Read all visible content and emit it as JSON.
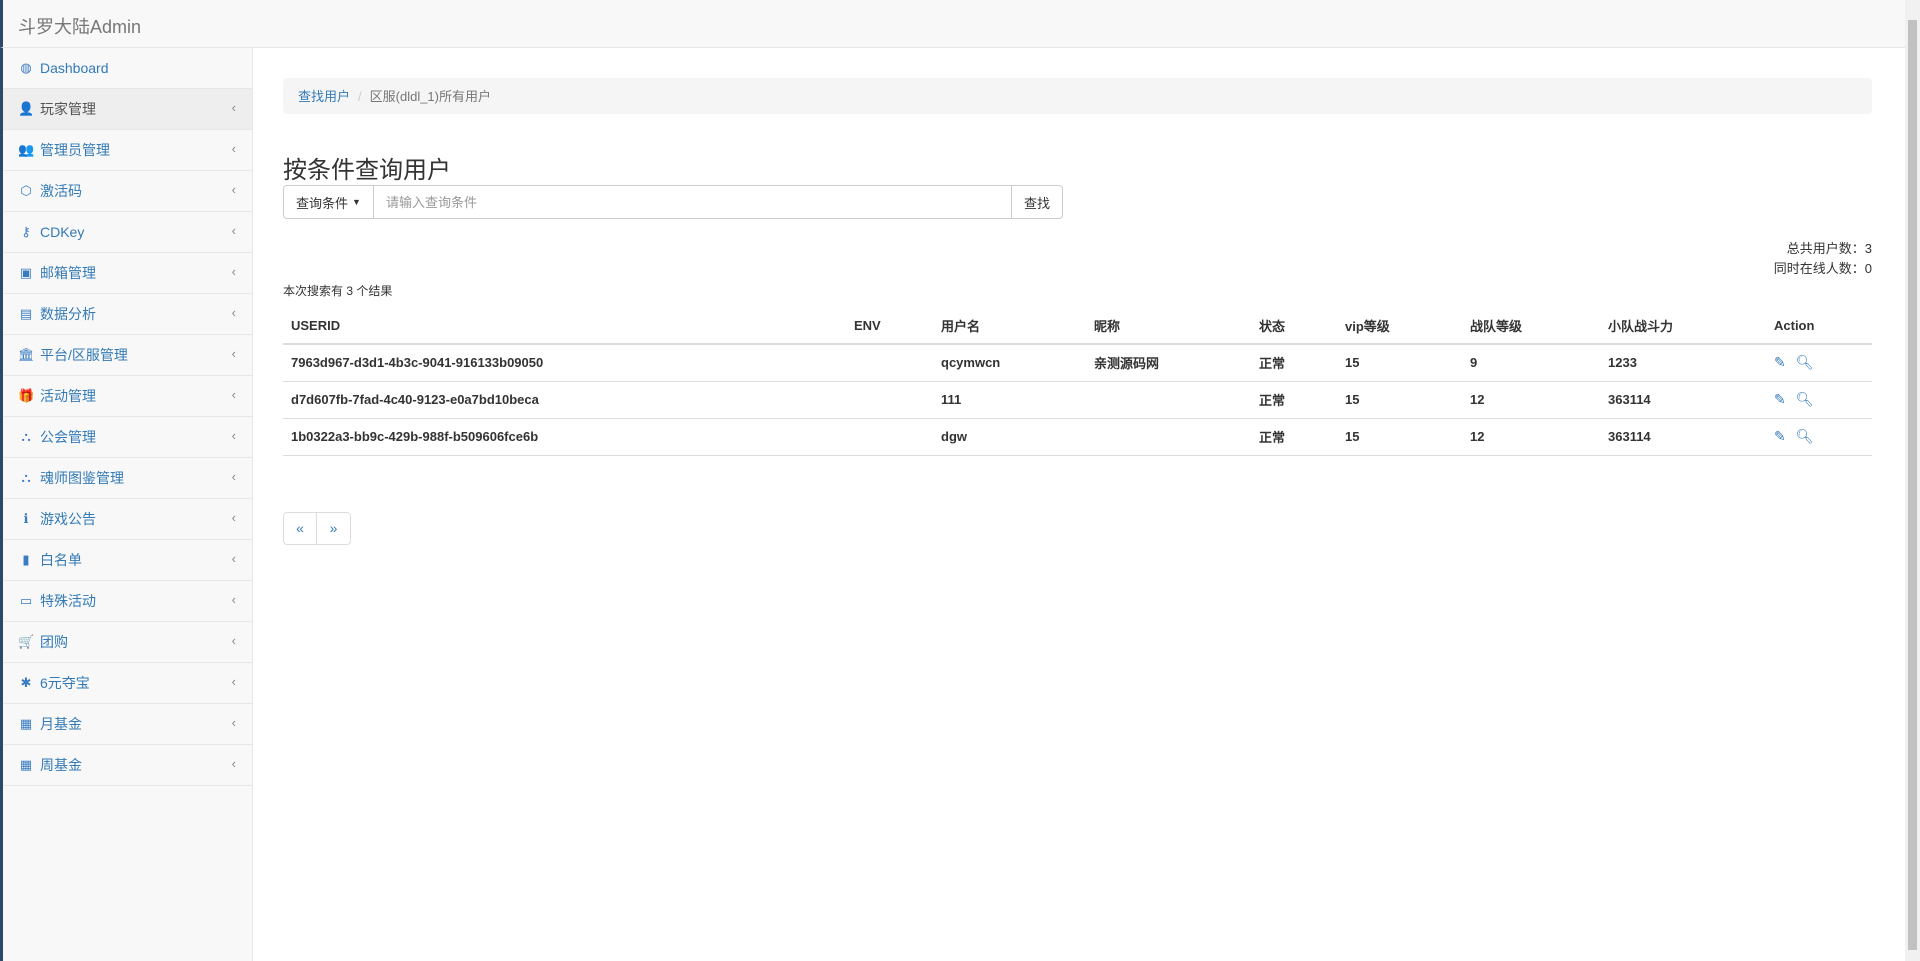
{
  "app_title": "斗罗大陆Admin",
  "sidebar": {
    "items": [
      {
        "label": "Dashboard",
        "icon": "dashboard-icon",
        "glyph": "◍"
      },
      {
        "label": "玩家管理",
        "icon": "user-icon",
        "glyph": "👤",
        "active": true
      },
      {
        "label": "管理员管理",
        "icon": "users-icon",
        "glyph": "👥"
      },
      {
        "label": "激活码",
        "icon": "codepen-icon",
        "glyph": "⬡"
      },
      {
        "label": "CDKey",
        "icon": "key-icon",
        "glyph": "⚷"
      },
      {
        "label": "邮箱管理",
        "icon": "inbox-icon",
        "glyph": "▣"
      },
      {
        "label": "数据分析",
        "icon": "bar-chart-icon",
        "glyph": "▤"
      },
      {
        "label": "平台/区服管理",
        "icon": "bank-icon",
        "glyph": "🏛"
      },
      {
        "label": "活动管理",
        "icon": "gift-icon",
        "glyph": "🎁"
      },
      {
        "label": "公会管理",
        "icon": "sitemap-icon",
        "glyph": "⛬"
      },
      {
        "label": "魂师图鉴管理",
        "icon": "sitemap-icon",
        "glyph": "⛬"
      },
      {
        "label": "游戏公告",
        "icon": "info-icon",
        "glyph": "ℹ"
      },
      {
        "label": "白名单",
        "icon": "file-icon",
        "glyph": "▮"
      },
      {
        "label": "特殊活动",
        "icon": "money-icon",
        "glyph": "▭"
      },
      {
        "label": "团购",
        "icon": "shopping-cart-icon",
        "glyph": "🛒"
      },
      {
        "label": "6元夺宝",
        "icon": "asterisk-icon",
        "glyph": "✱"
      },
      {
        "label": "月基金",
        "icon": "calendar-icon",
        "glyph": "▦"
      },
      {
        "label": "周基金",
        "icon": "calendar-icon",
        "glyph": "▦"
      }
    ]
  },
  "breadcrumb": {
    "link": "查找用户",
    "current": "区服(dldl_1)所有用户"
  },
  "page_title": "按条件查询用户",
  "search": {
    "dropdown_label": "查询条件",
    "placeholder": "请输入查询条件",
    "button": "查找"
  },
  "stats": {
    "total_users": "总共用户数：3",
    "online_users": "同时在线人数：0"
  },
  "result_text": "本次搜索有 3 个结果",
  "table": {
    "headers": [
      "USERID",
      "ENV",
      "用户名",
      "昵称",
      "状态",
      "vip等级",
      "战队等级",
      "小队战斗力",
      "Action"
    ],
    "rows": [
      [
        "7963d967-d3d1-4b3c-9041-916133b09050",
        "",
        "qcymwcn",
        "亲测源码网",
        "正常",
        "15",
        "9",
        "1233"
      ],
      [
        "d7d607fb-7fad-4c40-9123-e0a7bd10beca",
        "",
        "111",
        "",
        "正常",
        "15",
        "12",
        "363114"
      ],
      [
        "1b0322a3-bb9c-429b-988f-b509606fce6b",
        "",
        "dgw",
        "",
        "正常",
        "15",
        "12",
        "363114"
      ]
    ]
  },
  "pagination": {
    "prev": "«",
    "next": "»"
  },
  "colors": {
    "link": "#337ab7",
    "sidebar_bg": "#f8f8f8",
    "active_bg": "#eeeeee"
  }
}
